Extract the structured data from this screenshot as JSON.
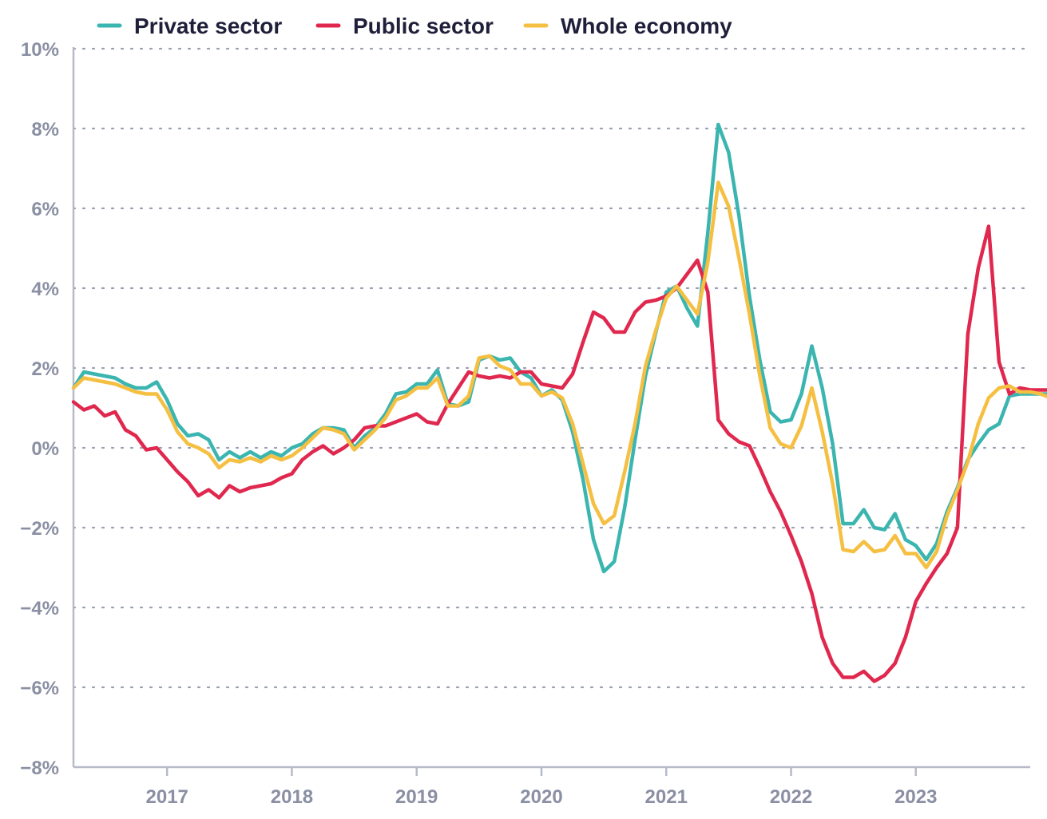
{
  "chart_data": {
    "type": "line",
    "title": "",
    "xlabel": "",
    "ylabel": "",
    "ylim": [
      -8,
      10
    ],
    "yticks": [
      10,
      8,
      6,
      4,
      2,
      0,
      -2,
      -4,
      -6,
      -8
    ],
    "ytick_labels": [
      "10%",
      "8%",
      "6%",
      "4%",
      "2%",
      "0%",
      "−2%",
      "−4%",
      "−6%",
      "−8%"
    ],
    "x_start": "2016-04",
    "x_end": "2023-12",
    "xticks": [
      "2017",
      "2018",
      "2019",
      "2020",
      "2021",
      "2022",
      "2023"
    ],
    "grid": "horizontal dotted",
    "legend_position": "top-left",
    "series": [
      {
        "name": "Private sector",
        "color": "#3bb5b0",
        "values": [
          1.5,
          1.9,
          1.85,
          1.8,
          1.75,
          1.6,
          1.5,
          1.5,
          1.65,
          1.2,
          0.6,
          0.3,
          0.35,
          0.2,
          -0.3,
          -0.1,
          -0.25,
          -0.1,
          -0.25,
          -0.1,
          -0.2,
          0.0,
          0.1,
          0.35,
          0.5,
          0.5,
          0.45,
          0.0,
          0.3,
          0.5,
          0.85,
          1.35,
          1.4,
          1.6,
          1.6,
          1.95,
          1.1,
          1.05,
          1.15,
          2.2,
          2.3,
          2.2,
          2.25,
          1.9,
          1.75,
          1.3,
          1.45,
          1.2,
          0.4,
          -0.8,
          -2.3,
          -3.1,
          -2.85,
          -1.5,
          0.2,
          1.8,
          2.9,
          3.9,
          4.05,
          3.5,
          3.05,
          5.4,
          8.1,
          7.4,
          5.8,
          3.8,
          2.2,
          0.9,
          0.65,
          0.7,
          1.35,
          2.55,
          1.5,
          0.1,
          -1.9,
          -1.9,
          -1.55,
          -2.0,
          -2.05,
          -1.65,
          -2.3,
          -2.45,
          -2.8,
          -2.4,
          -1.6,
          -1.0,
          -0.3,
          0.1,
          0.45,
          0.6,
          1.3,
          1.35,
          1.35,
          1.35,
          1.35
        ]
      },
      {
        "name": "Public sector",
        "color": "#e0284f",
        "values": [
          1.15,
          0.95,
          1.05,
          0.8,
          0.9,
          0.45,
          0.3,
          -0.05,
          0.0,
          -0.3,
          -0.6,
          -0.85,
          -1.2,
          -1.05,
          -1.25,
          -0.95,
          -1.1,
          -1.0,
          -0.95,
          -0.9,
          -0.75,
          -0.65,
          -0.3,
          -0.1,
          0.05,
          -0.15,
          0.0,
          0.2,
          0.5,
          0.55,
          0.55,
          0.65,
          0.75,
          0.85,
          0.65,
          0.6,
          1.1,
          1.5,
          1.9,
          1.8,
          1.75,
          1.8,
          1.75,
          1.9,
          1.9,
          1.6,
          1.55,
          1.5,
          1.85,
          2.65,
          3.4,
          3.25,
          2.9,
          2.9,
          3.4,
          3.65,
          3.7,
          3.8,
          4.0,
          4.35,
          4.7,
          3.9,
          0.7,
          0.35,
          0.15,
          0.05,
          -0.5,
          -1.1,
          -1.6,
          -2.2,
          -2.85,
          -3.65,
          -4.75,
          -5.4,
          -5.75,
          -5.75,
          -5.6,
          -5.85,
          -5.7,
          -5.4,
          -4.75,
          -3.85,
          -3.4,
          -3.0,
          -2.65,
          -2.0,
          2.85,
          4.5,
          5.55,
          2.15,
          1.35,
          1.5,
          1.45,
          1.45,
          1.45
        ]
      },
      {
        "name": "Whole economy",
        "color": "#f5bf42",
        "values": [
          1.5,
          1.75,
          1.7,
          1.65,
          1.6,
          1.5,
          1.4,
          1.35,
          1.35,
          0.95,
          0.4,
          0.1,
          0.0,
          -0.15,
          -0.5,
          -0.3,
          -0.35,
          -0.25,
          -0.35,
          -0.2,
          -0.3,
          -0.2,
          0.0,
          0.25,
          0.5,
          0.45,
          0.35,
          -0.05,
          0.2,
          0.45,
          0.75,
          1.2,
          1.3,
          1.5,
          1.5,
          1.75,
          1.05,
          1.05,
          1.3,
          2.25,
          2.3,
          2.05,
          1.95,
          1.6,
          1.6,
          1.3,
          1.4,
          1.25,
          0.6,
          -0.4,
          -1.4,
          -1.9,
          -1.7,
          -0.6,
          0.6,
          2.05,
          2.95,
          3.75,
          4.05,
          3.7,
          3.35,
          4.65,
          6.65,
          6.05,
          4.75,
          3.35,
          1.8,
          0.5,
          0.1,
          0.0,
          0.55,
          1.5,
          0.4,
          -0.9,
          -2.55,
          -2.6,
          -2.35,
          -2.6,
          -2.55,
          -2.2,
          -2.65,
          -2.65,
          -3.0,
          -2.6,
          -1.7,
          -1.05,
          -0.35,
          0.6,
          1.25,
          1.5,
          1.55,
          1.4,
          1.4,
          1.35,
          1.25
        ]
      }
    ]
  }
}
